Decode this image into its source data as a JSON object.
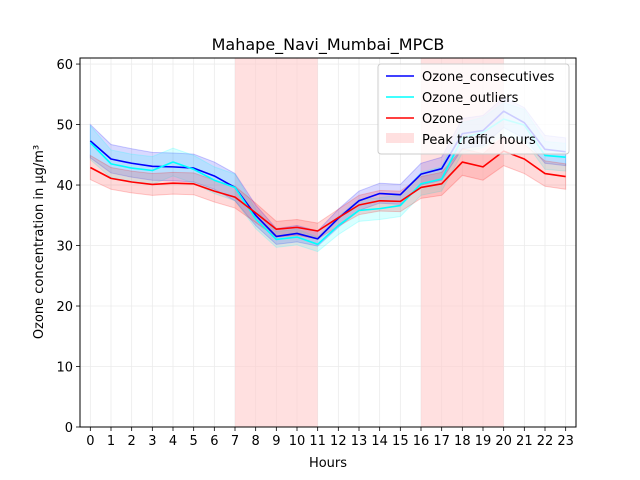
{
  "chart_data": {
    "type": "line",
    "title": "Mahape_Navi_Mumbai_MPCB",
    "xlabel": "Hours",
    "ylabel": "Ozone concentration in µg/m³",
    "xlim": [
      -0.5,
      23.5
    ],
    "ylim": [
      0,
      61
    ],
    "x": [
      0,
      1,
      2,
      3,
      4,
      5,
      6,
      7,
      8,
      9,
      10,
      11,
      12,
      13,
      14,
      15,
      16,
      17,
      18,
      19,
      20,
      21,
      22,
      23
    ],
    "x_ticks": [
      0,
      1,
      2,
      3,
      4,
      5,
      6,
      7,
      8,
      9,
      10,
      11,
      12,
      13,
      14,
      15,
      16,
      17,
      18,
      19,
      20,
      21,
      22,
      23
    ],
    "y_ticks": [
      0,
      10,
      20,
      30,
      40,
      50,
      60
    ],
    "grid": true,
    "legend_position": "upper-right",
    "series": [
      {
        "name": "Ozone_consecutives",
        "color": "#0000ff",
        "values": [
          47.3,
          44.3,
          43.6,
          43.1,
          43.0,
          42.8,
          41.5,
          39.6,
          35.0,
          31.5,
          32.0,
          31.1,
          34.5,
          37.4,
          38.6,
          38.4,
          41.8,
          42.7,
          48.5,
          49.0,
          52.2,
          50.3,
          45.9,
          45.5
        ],
        "lower": [
          44.5,
          42.0,
          41.3,
          40.8,
          40.7,
          40.5,
          39.3,
          37.4,
          33.3,
          30.2,
          30.6,
          29.9,
          33.0,
          35.8,
          37.0,
          36.8,
          40.0,
          40.8,
          46.0,
          46.5,
          49.5,
          47.7,
          43.6,
          43.2
        ],
        "upper": [
          50.0,
          46.7,
          46.0,
          45.4,
          45.3,
          45.1,
          43.8,
          41.9,
          36.7,
          32.8,
          33.3,
          32.4,
          36.0,
          39.0,
          40.3,
          40.1,
          43.6,
          44.6,
          51.0,
          51.5,
          54.5,
          52.8,
          48.2,
          47.8
        ]
      },
      {
        "name": "Ozone_outliers",
        "color": "#00ffff",
        "values": [
          47.0,
          43.5,
          42.8,
          42.4,
          43.8,
          42.6,
          40.8,
          39.6,
          34.4,
          31.0,
          31.4,
          30.2,
          33.3,
          35.8,
          36.1,
          36.6,
          40.2,
          41.0,
          47.8,
          48.7,
          50.9,
          49.9,
          44.9,
          44.6
        ],
        "lower": [
          44.2,
          41.2,
          40.5,
          40.1,
          41.5,
          40.3,
          38.6,
          37.4,
          32.8,
          29.7,
          30.1,
          29.0,
          31.8,
          34.0,
          34.3,
          34.8,
          38.3,
          39.0,
          45.3,
          46.2,
          48.2,
          47.3,
          42.6,
          42.3
        ],
        "upper": [
          49.8,
          45.8,
          45.1,
          44.7,
          46.1,
          44.9,
          43.0,
          41.8,
          36.0,
          32.3,
          32.7,
          31.4,
          34.8,
          37.6,
          37.9,
          38.4,
          42.1,
          43.0,
          50.3,
          51.2,
          53.6,
          52.5,
          47.2,
          46.9
        ]
      },
      {
        "name": "Ozone",
        "color": "#ff0000",
        "values": [
          42.9,
          41.1,
          40.5,
          40.1,
          40.3,
          40.2,
          39.0,
          38.0,
          35.4,
          32.7,
          33.0,
          32.4,
          34.6,
          36.7,
          37.4,
          37.3,
          39.6,
          40.2,
          43.8,
          43.0,
          45.6,
          44.3,
          41.9,
          41.4
        ],
        "lower": [
          40.9,
          39.3,
          38.7,
          38.3,
          38.5,
          38.4,
          37.2,
          36.2,
          33.8,
          31.4,
          31.7,
          31.1,
          33.2,
          35.1,
          35.7,
          35.6,
          37.8,
          38.3,
          41.6,
          40.8,
          43.2,
          41.9,
          39.8,
          39.3
        ],
        "upper": [
          44.9,
          42.9,
          42.3,
          41.9,
          42.1,
          42.0,
          40.8,
          39.8,
          37.0,
          34.0,
          34.3,
          33.7,
          36.0,
          38.3,
          39.1,
          39.0,
          41.4,
          42.1,
          46.0,
          45.2,
          48.0,
          46.7,
          44.0,
          43.5
        ]
      }
    ],
    "shaded_regions": [
      {
        "name": "Peak traffic hours",
        "color": "#ffcccc",
        "ranges": [
          [
            7,
            11
          ],
          [
            16,
            20
          ]
        ]
      }
    ]
  }
}
